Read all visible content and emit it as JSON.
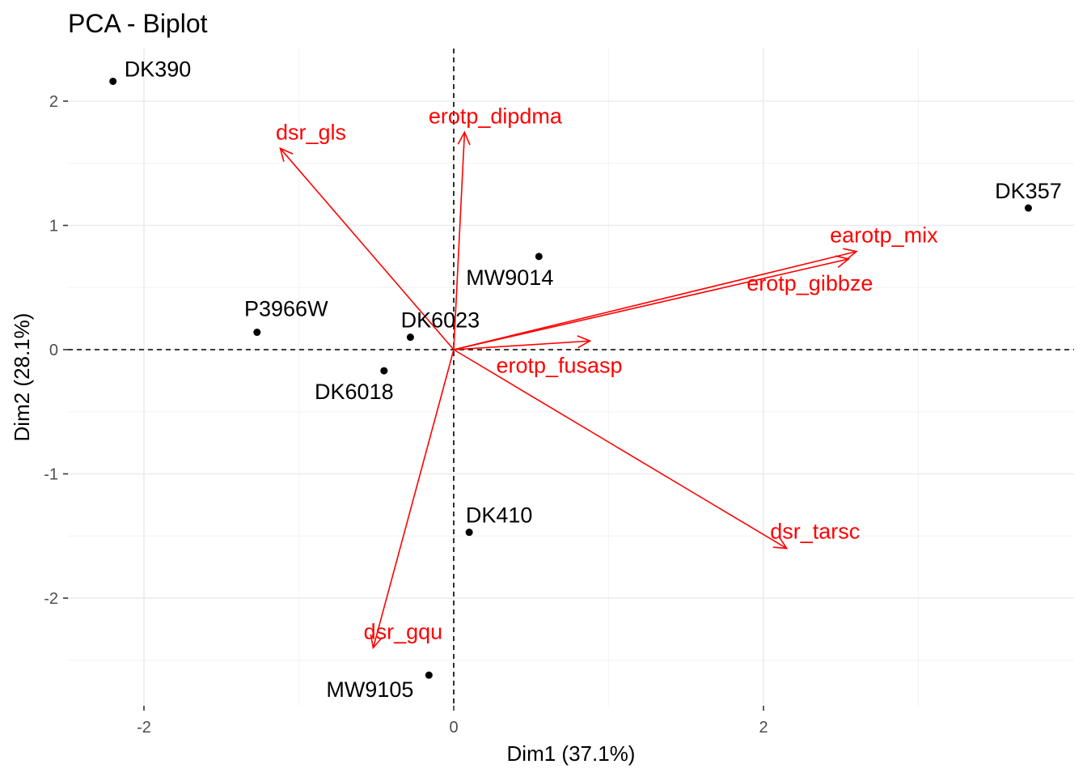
{
  "chart_data": {
    "type": "scatter",
    "subtype": "pca-biplot",
    "title": "PCA - Biplot",
    "xlabel": "Dim1 (37.1%)",
    "ylabel": "Dim2 (28.1%)",
    "xlim": [
      -2.5,
      3.7
    ],
    "ylim": [
      -2.87,
      2.4
    ],
    "x_ticks": [
      -2,
      0,
      2
    ],
    "y_ticks": [
      -2,
      -1,
      0,
      1,
      2
    ],
    "grid": true,
    "reference_lines": {
      "x": 0,
      "y": 0,
      "style": "dashed"
    },
    "points": [
      {
        "label": "DK390",
        "x": -2.2,
        "y": 2.16
      },
      {
        "label": "DK357",
        "x": 3.71,
        "y": 1.14
      },
      {
        "label": "MW9014",
        "x": 0.55,
        "y": 0.75
      },
      {
        "label": "P3966W",
        "x": -1.27,
        "y": 0.14
      },
      {
        "label": "DK6023",
        "x": -0.28,
        "y": 0.1
      },
      {
        "label": "DK6018",
        "x": -0.45,
        "y": -0.17
      },
      {
        "label": "DK410",
        "x": 0.1,
        "y": -1.47
      },
      {
        "label": "MW9105",
        "x": -0.16,
        "y": -2.62
      }
    ],
    "variables": [
      {
        "label": "dsr_gls",
        "x": -1.12,
        "y": 1.62
      },
      {
        "label": "erotp_dipdma",
        "x": 0.07,
        "y": 1.75
      },
      {
        "label": "earotp_mix",
        "x": 2.6,
        "y": 0.79
      },
      {
        "label": "erotp_gibbze",
        "x": 2.55,
        "y": 0.73
      },
      {
        "label": "erotp_fusasp",
        "x": 0.88,
        "y": 0.07
      },
      {
        "label": "dsr_tarsc",
        "x": 2.15,
        "y": -1.6
      },
      {
        "label": "dsr_gqu",
        "x": -0.52,
        "y": -2.4
      }
    ],
    "colors": {
      "points": "#000000",
      "variables": "#ff0000",
      "grid_major": "#ebebeb",
      "grid_minor": "#f4f4f4",
      "reference": "#000000"
    }
  }
}
